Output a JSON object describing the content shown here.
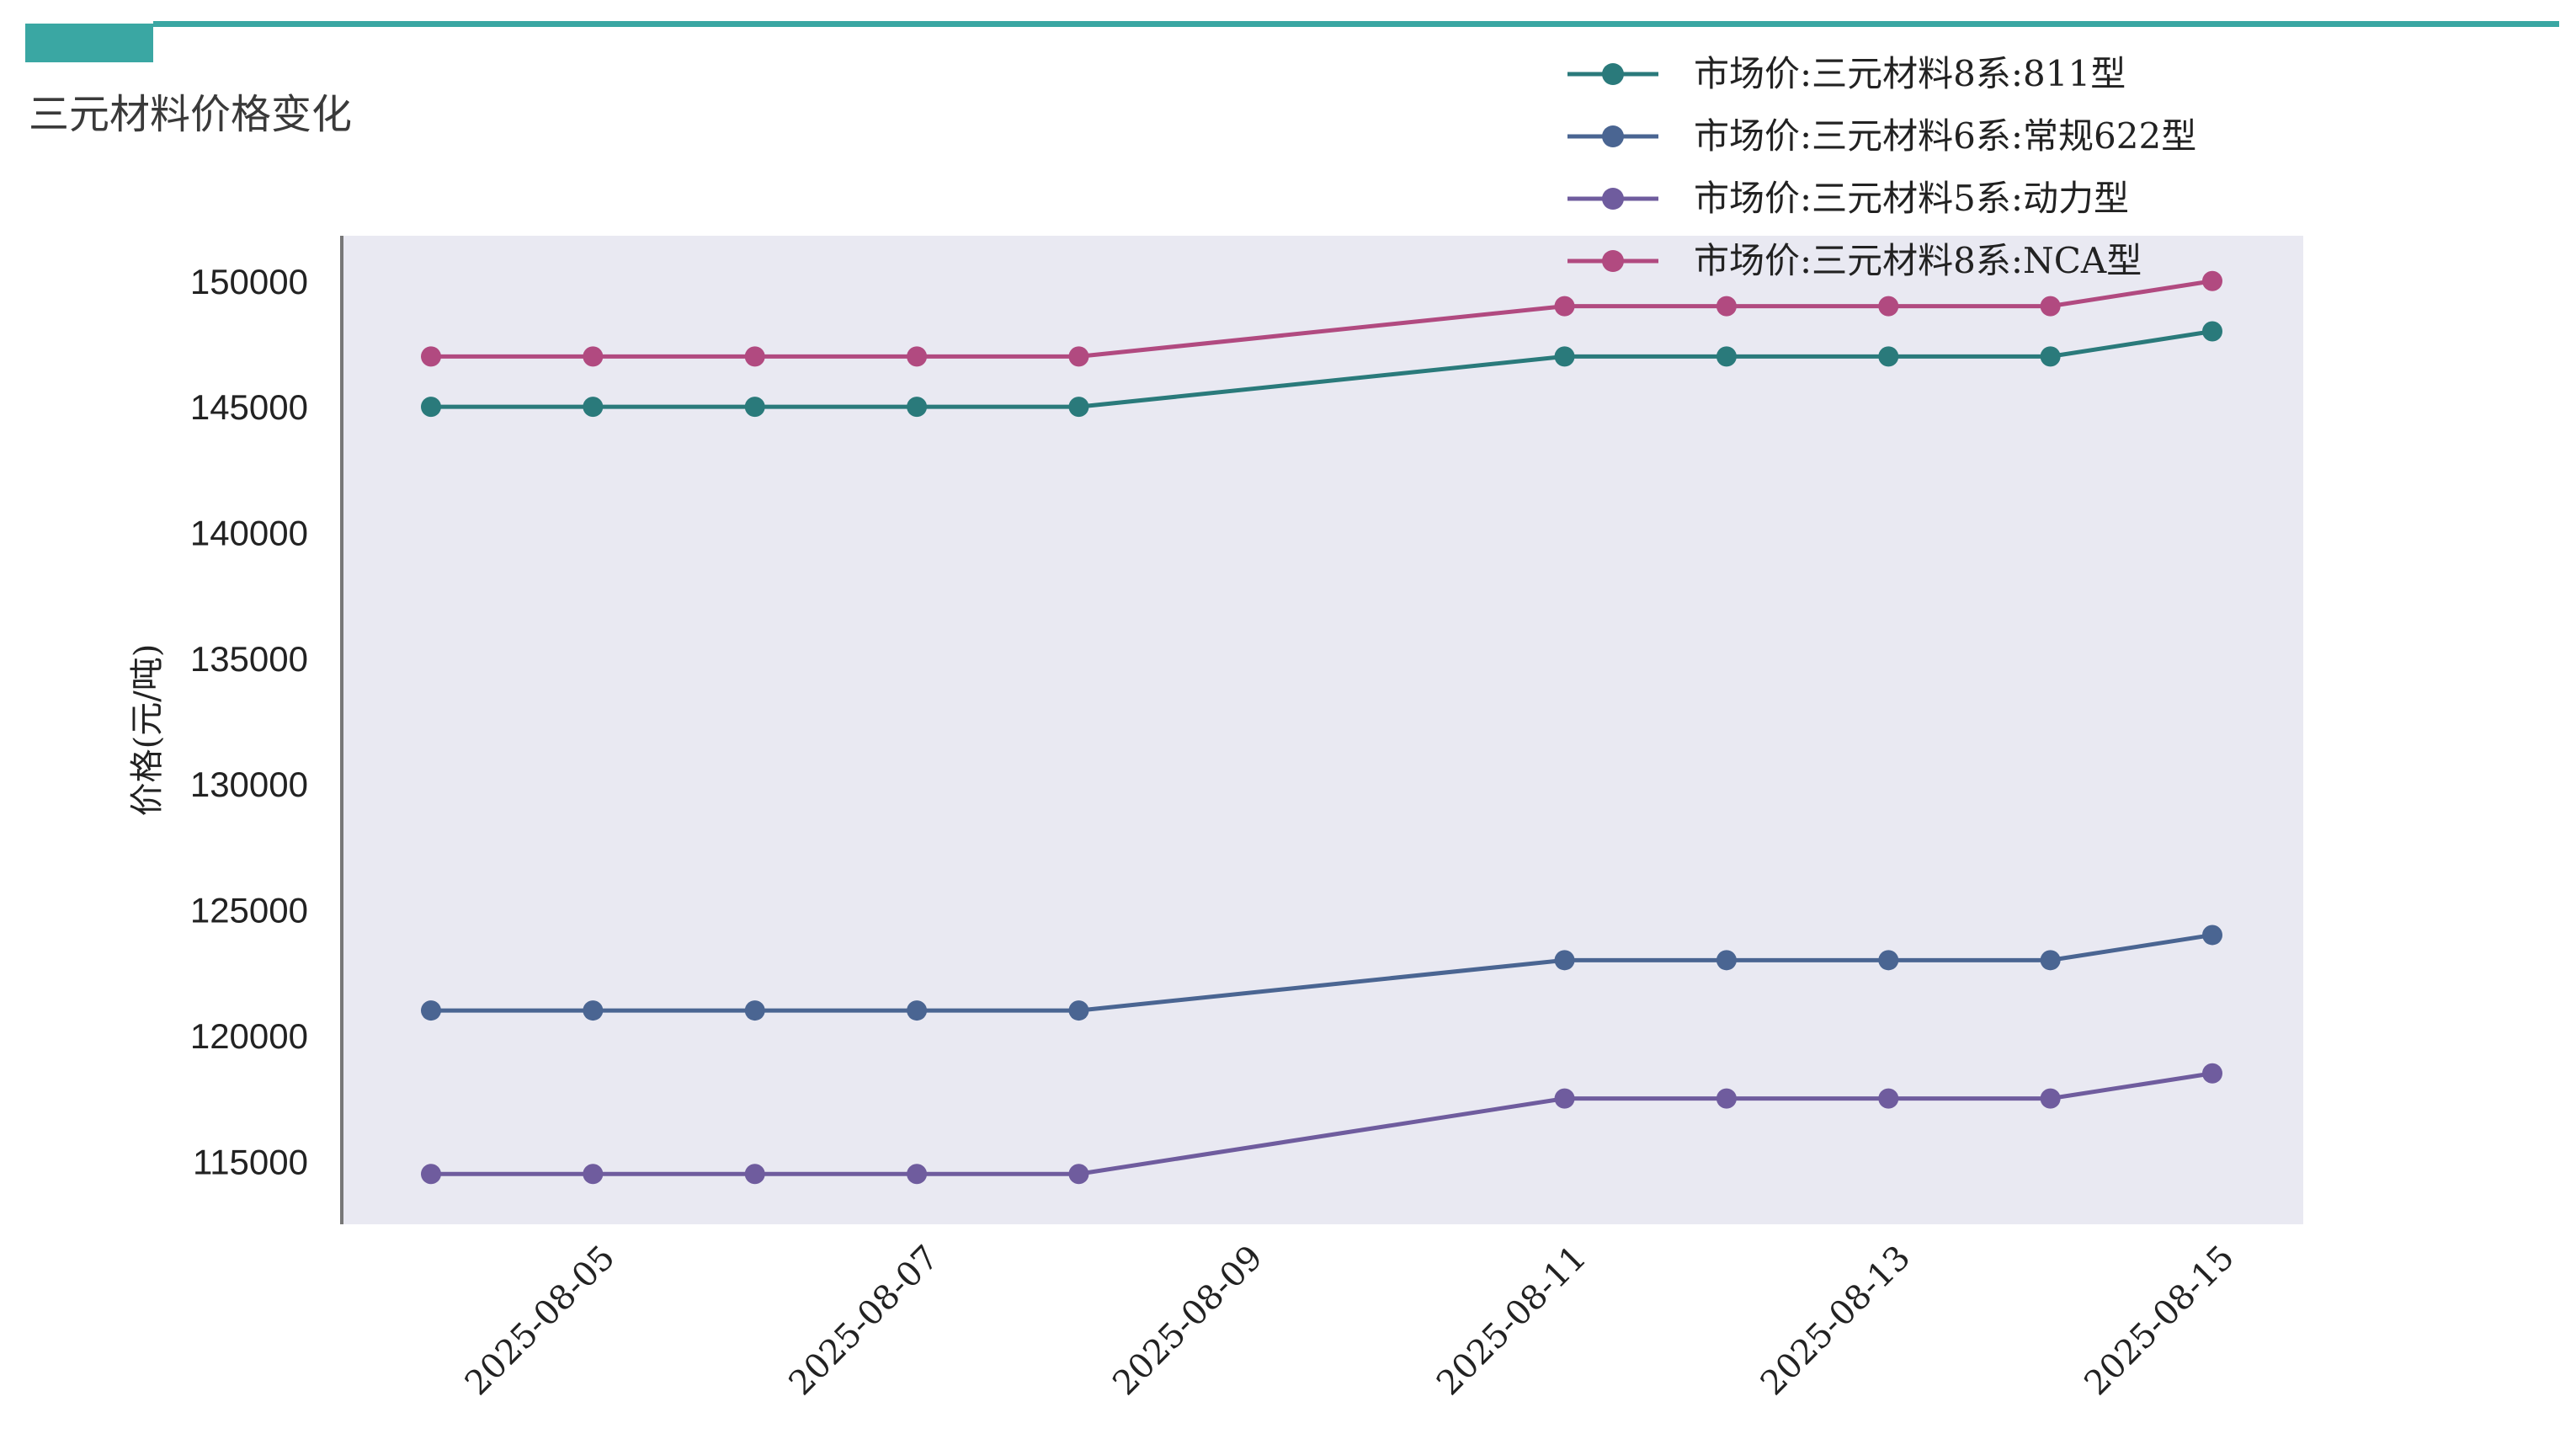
{
  "page": {
    "title": "三元材料价格变化",
    "accent_color": "#3aa7a3"
  },
  "chart_data": {
    "type": "line",
    "title": "三元材料价格变化",
    "xlabel": "",
    "ylabel": "价格(元/吨)",
    "x": [
      "2025-08-04",
      "2025-08-05",
      "2025-08-06",
      "2025-08-07",
      "2025-08-08",
      "2025-08-11",
      "2025-08-12",
      "2025-08-13",
      "2025-08-14",
      "2025-08-15"
    ],
    "x_ticks": [
      "2025-08-05",
      "2025-08-07",
      "2025-08-09",
      "2025-08-11",
      "2025-08-13",
      "2025-08-15"
    ],
    "y_ticks": [
      115000,
      120000,
      125000,
      130000,
      135000,
      140000,
      145000,
      150000
    ],
    "ylim": [
      112500,
      151800
    ],
    "xlim": [
      "2025-08-03",
      "2025-08-15"
    ],
    "grid": false,
    "legend_position": "top-right",
    "series": [
      {
        "name": "市场价:三元材料8系:811型",
        "color": "#2a7a7b",
        "values": [
          145000,
          145000,
          145000,
          145000,
          145000,
          147000,
          147000,
          147000,
          147000,
          148000
        ]
      },
      {
        "name": "市场价:三元材料6系:常规622型",
        "color": "#4a6592",
        "values": [
          121000,
          121000,
          121000,
          121000,
          121000,
          123000,
          123000,
          123000,
          123000,
          124000
        ]
      },
      {
        "name": "市场价:三元材料5系:动力型",
        "color": "#6f5c9e",
        "values": [
          114500,
          114500,
          114500,
          114500,
          114500,
          117500,
          117500,
          117500,
          117500,
          118500
        ]
      },
      {
        "name": "市场价:三元材料8系:NCA型",
        "color": "#b14a80",
        "values": [
          147000,
          147000,
          147000,
          147000,
          147000,
          149000,
          149000,
          149000,
          149000,
          150000
        ]
      }
    ]
  }
}
